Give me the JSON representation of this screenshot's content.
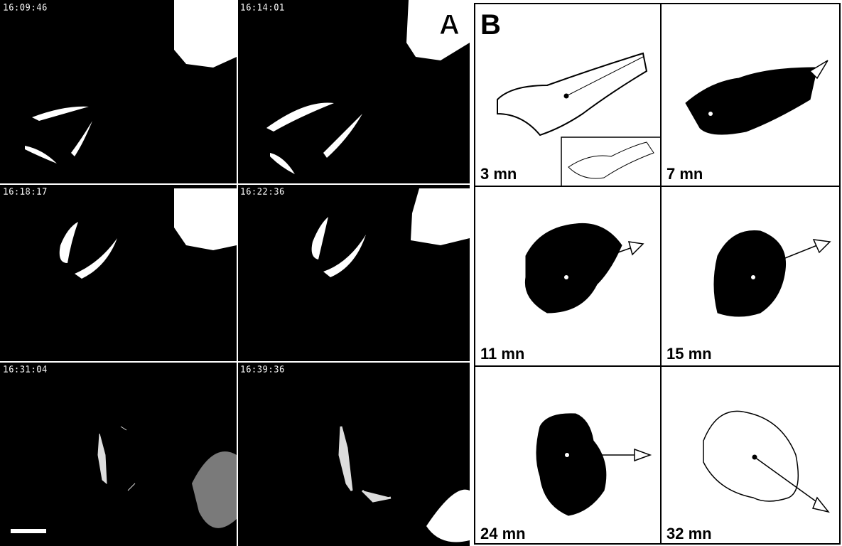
{
  "panel_a": {
    "label": "A",
    "timestamps": [
      "16:09:46",
      "16:14:01",
      "16:18:17",
      "16:22:36",
      "16:31:04",
      "16:39:36"
    ]
  },
  "panel_b": {
    "label": "B",
    "frames": [
      "3 mn",
      "7 mn",
      "11 mn",
      "15 mn",
      "24 mn",
      "32 mn"
    ]
  }
}
